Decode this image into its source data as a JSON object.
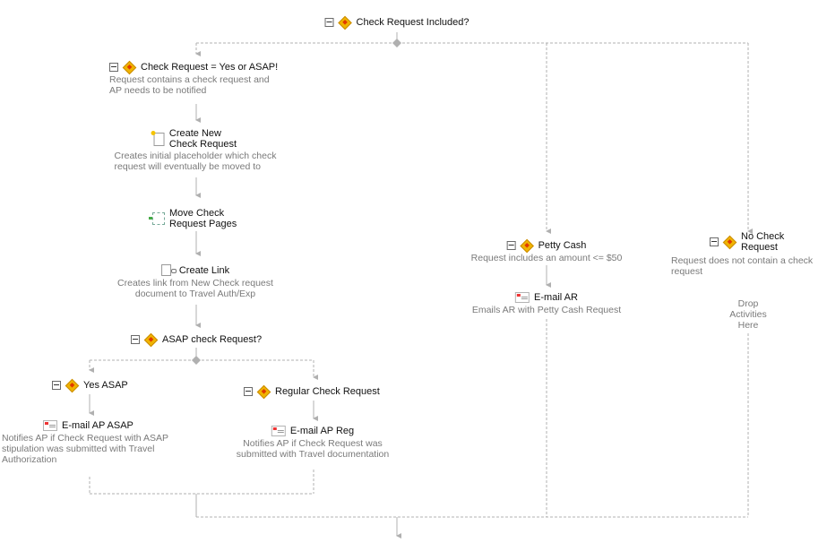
{
  "root": {
    "title": "Check Request Included?"
  },
  "branch_yes": {
    "title": "Check Request = Yes or ASAP!",
    "desc": [
      "Request contains a check request and",
      "AP needs to be notified"
    ]
  },
  "create_new": {
    "title": [
      "Create New",
      "Check Request"
    ],
    "desc": [
      "Creates initial placeholder which check",
      "request will eventually be moved to"
    ]
  },
  "move_pages": {
    "title": [
      "Move Check",
      "Request Pages"
    ]
  },
  "create_link": {
    "title": "Create Link",
    "desc": [
      "Creates link from New Check request",
      "document to Travel Auth/Exp"
    ]
  },
  "asap_check": {
    "title": "ASAP check Request?"
  },
  "yes_asap": {
    "title": "Yes ASAP"
  },
  "email_ap_asap": {
    "title": "E-mail AP ASAP",
    "desc": [
      "Notifies AP if Check Request with ASAP",
      "stipulation was submitted with Travel",
      "Authorization"
    ]
  },
  "regular": {
    "title": "Regular Check Request"
  },
  "email_ap_reg": {
    "title": "E-mail AP Reg",
    "desc": [
      "Notifies AP if Check Request was",
      "submitted with Travel documentation"
    ]
  },
  "petty_cash": {
    "title": "Petty Cash",
    "desc": "Request includes an amount <= $50"
  },
  "email_ar": {
    "title": "E-mail AR",
    "desc": "Emails AR with Petty Cash Request"
  },
  "no_check": {
    "title": [
      "No Check",
      "Request"
    ],
    "desc": [
      "Request does not contain a check",
      "request"
    ]
  },
  "drop_zone": [
    "Drop",
    "Activities",
    "Here"
  ],
  "icons": {
    "collapse": "collapse-minus-icon",
    "condition": "condition-diamond-icon",
    "email": "email-icon",
    "document": "new-document-icon",
    "move": "move-pages-icon",
    "link": "create-link-icon"
  },
  "colors": {
    "wire": "#b0b0b0",
    "desc_text": "#7a7a7a",
    "condition": "#f0b400"
  }
}
